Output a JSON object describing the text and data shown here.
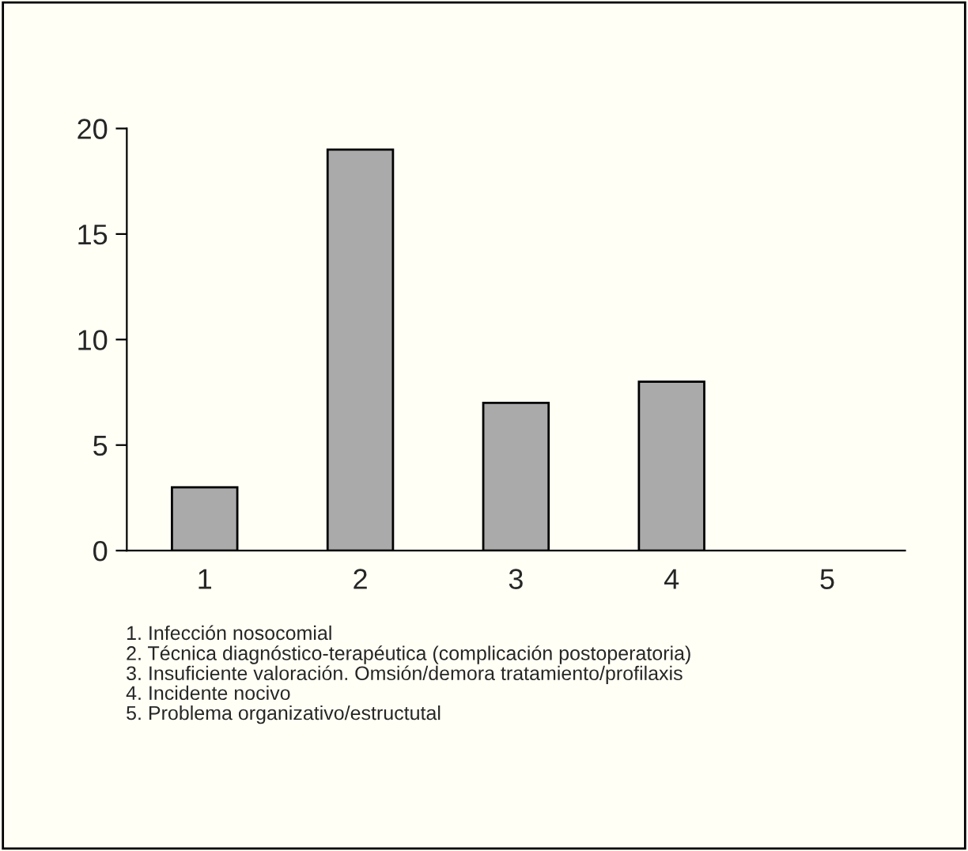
{
  "chart_data": {
    "type": "bar",
    "categories": [
      "1",
      "2",
      "3",
      "4",
      "5"
    ],
    "values": [
      3,
      19,
      7,
      8,
      0
    ],
    "color": "#aaaaaa",
    "ylim": [
      0,
      20
    ],
    "yticks": [
      0,
      5,
      10,
      15,
      20
    ],
    "grid": false,
    "legend": false,
    "annotations": [
      "1. Infección nosocomial",
      "2. Técnica diagnóstico-terapéutica (complicación postoperatoria)",
      "3. Insuficiente valoración. Omsión/demora tratamiento/profilaxis",
      "4. Incidente nocivo",
      "5. Problema organizativo/estructutal"
    ]
  }
}
